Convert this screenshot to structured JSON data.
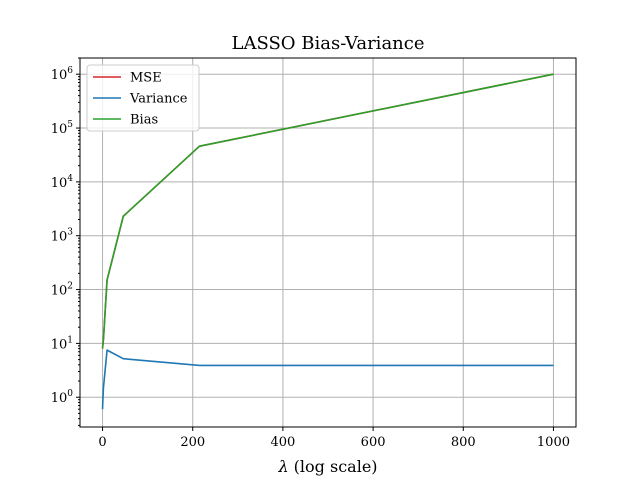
{
  "chart_data": {
    "type": "line",
    "title": "LASSO Bias-Variance",
    "xlabel_symbol": "λ",
    "xlabel_suffix": " (log scale)",
    "ylabel": "",
    "xlim": [
      -50,
      1050
    ],
    "ylim": [
      0.28,
      2000000
    ],
    "y_scale": "log",
    "grid": true,
    "legend_position": "top-left",
    "x_ticks": [
      0,
      200,
      400,
      600,
      800,
      1000
    ],
    "x_tick_labels": [
      "0",
      "200",
      "400",
      "600",
      "800",
      "1000"
    ],
    "y_ticks": [
      1,
      10,
      100,
      1000,
      10000,
      100000,
      1000000
    ],
    "y_tick_exponents": [
      "0",
      "1",
      "2",
      "3",
      "4",
      "5",
      "6"
    ],
    "y_tick_base": "10",
    "x": [
      0,
      0.5,
      2,
      10,
      46,
      215,
      1000
    ],
    "series": [
      {
        "name": "MSE",
        "color": "#d62728",
        "values": [
          8,
          9,
          12,
          150,
          2300,
          46000,
          1000000
        ]
      },
      {
        "name": "Variance",
        "color": "#1f77b4",
        "values": [
          0.6,
          0.8,
          1.5,
          7.5,
          5.2,
          3.9,
          3.9
        ]
      },
      {
        "name": "Bias",
        "color": "#2ca02c",
        "values": [
          8,
          9,
          12,
          150,
          2300,
          46000,
          1000000
        ]
      }
    ]
  }
}
